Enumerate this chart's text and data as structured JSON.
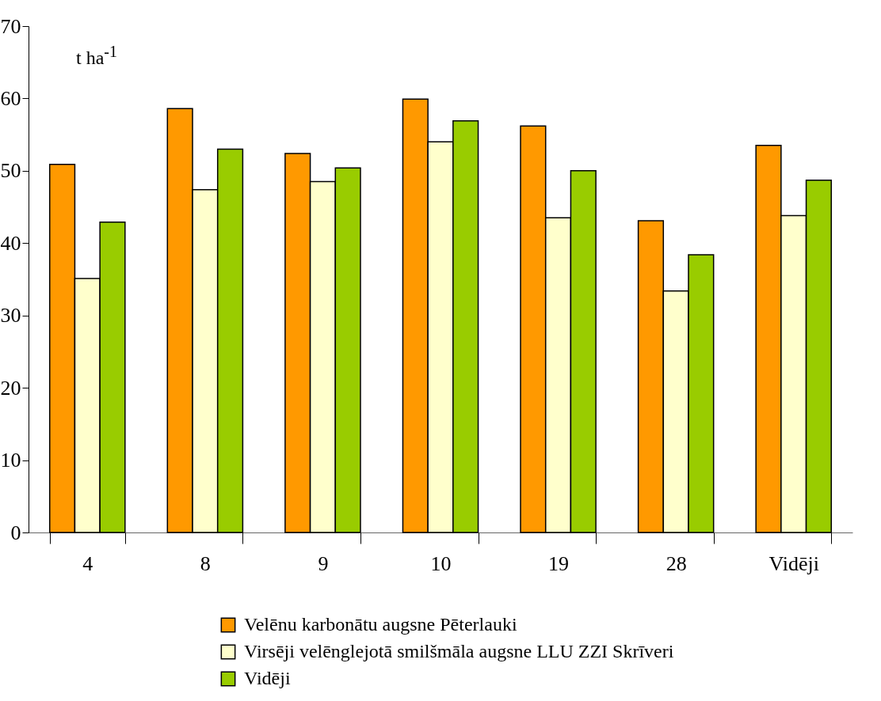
{
  "chart_data": {
    "type": "bar",
    "ylabel": "t ha$^{-1}$",
    "categories": [
      "4",
      "8",
      "9",
      "10",
      "19",
      "28",
      "Vidēji"
    ],
    "series": [
      {
        "name": "Velēnu karbonātu augsne Pēterlauki",
        "color": "#ff9900",
        "values": [
          50.9,
          58.6,
          52.4,
          59.9,
          56.2,
          43.1,
          53.5
        ]
      },
      {
        "name": "Virsēji velēnglejotā  smilšmāla augsne LLU ZZI Skrīveri",
        "color": "#ffffcc",
        "values": [
          35.1,
          47.4,
          48.5,
          54.0,
          43.5,
          33.4,
          43.8
        ]
      },
      {
        "name": "Vidēji",
        "color": "#99cc00",
        "values": [
          42.9,
          53.0,
          50.4,
          56.9,
          50.0,
          38.4,
          48.7
        ]
      }
    ],
    "ylim": [
      0,
      70
    ],
    "yticks": [
      0,
      10,
      20,
      30,
      40,
      50,
      60,
      70
    ],
    "grid": false,
    "legend": "bottom"
  }
}
